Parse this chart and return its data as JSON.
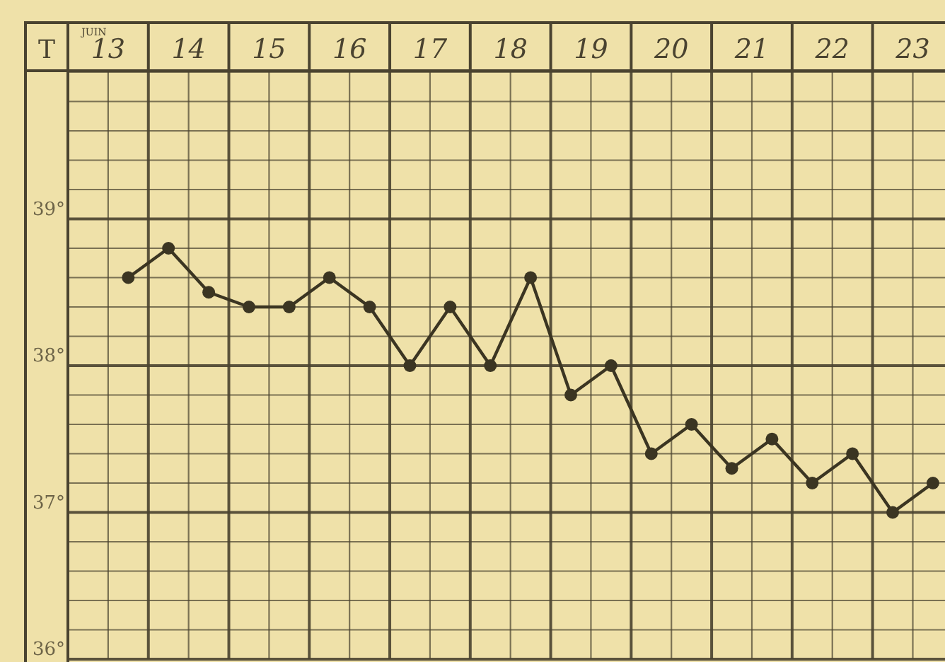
{
  "chart_data": {
    "type": "line",
    "ylabel": "T",
    "annotations": [
      "JUIN"
    ],
    "x": [
      13.25,
      13.75,
      14.25,
      14.75,
      15.25,
      15.75,
      16.25,
      16.75,
      17.25,
      17.75,
      18.25,
      18.75,
      19.25,
      19.75,
      20.25,
      20.75,
      21.25,
      21.75,
      22.25,
      22.75,
      23.25
    ],
    "series": [
      {
        "color": "#3b3522",
        "values": [
          38.6,
          38.8,
          38.5,
          38.4,
          38.4,
          38.6,
          38.4,
          38.0,
          38.4,
          38.0,
          38.6,
          37.8,
          38.0,
          37.4,
          37.6,
          37.3,
          37.5,
          37.2,
          37.4,
          37.0,
          37.2
        ]
      }
    ],
    "xlim": [
      12.5,
      23.4
    ],
    "xticks": [
      {
        "value": 12.5,
        "label": null
      },
      {
        "value": 13,
        "label": "13"
      },
      {
        "value": 13.5,
        "label": null
      },
      {
        "value": 14,
        "label": "14"
      },
      {
        "value": 14.5,
        "label": null
      },
      {
        "value": 15,
        "label": "15"
      },
      {
        "value": 15.5,
        "label": null
      },
      {
        "value": 16,
        "label": "16"
      },
      {
        "value": 16.5,
        "label": null
      },
      {
        "value": 17,
        "label": "17"
      },
      {
        "value": 17.5,
        "label": null
      },
      {
        "value": 18,
        "label": "18"
      },
      {
        "value": 18.5,
        "label": null
      },
      {
        "value": 19,
        "label": "19"
      },
      {
        "value": 19.5,
        "label": null
      },
      {
        "value": 20,
        "label": "20"
      },
      {
        "value": 20.5,
        "label": null
      },
      {
        "value": 21,
        "label": "21"
      },
      {
        "value": 21.5,
        "label": null
      },
      {
        "value": 22,
        "label": "22"
      },
      {
        "value": 22.5,
        "label": null
      },
      {
        "value": 23,
        "label": "23"
      }
    ],
    "ylim": [
      36,
      40
    ],
    "yticks": [
      {
        "value": 36,
        "label": "36°"
      },
      {
        "value": 36.2,
        "label": null
      },
      {
        "value": 36.4,
        "label": null
      },
      {
        "value": 36.6,
        "label": null
      },
      {
        "value": 36.8,
        "label": null
      },
      {
        "value": 37,
        "label": "37°"
      },
      {
        "value": 37.2,
        "label": null
      },
      {
        "value": 37.4,
        "label": null
      },
      {
        "value": 37.6,
        "label": null
      },
      {
        "value": 37.8,
        "label": null
      },
      {
        "value": 38,
        "label": "38°"
      },
      {
        "value": 38.2,
        "label": null
      },
      {
        "value": 38.4,
        "label": null
      },
      {
        "value": 38.6,
        "label": null
      },
      {
        "value": 38.8,
        "label": null
      },
      {
        "value": 39,
        "label": "39°"
      },
      {
        "value": 39.2,
        "label": null
      },
      {
        "value": 39.4,
        "label": null
      },
      {
        "value": 39.6,
        "label": null
      },
      {
        "value": 39.8,
        "label": null
      },
      {
        "value": 40,
        "label": null
      }
    ],
    "grid": true,
    "marker": "circle",
    "line_style": "solid"
  }
}
